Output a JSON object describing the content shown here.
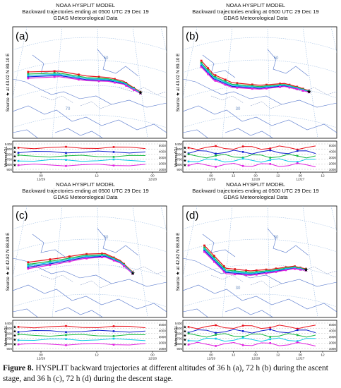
{
  "figure": {
    "panels": [
      {
        "id": "a",
        "label": "(a)",
        "model": "NOAA HYSPLIT MODEL",
        "subtitle": "Backward trajectories ending at 0500 UTC 29 Dec 19",
        "met": "GDAS Meteorological Data",
        "source_text": "Source ★ at 43.02 N 89.10 E",
        "grid_labels": [
          "50",
          "70"
        ],
        "x_ticks": [
          {
            "hour": "00",
            "date": "12/29"
          },
          {
            "hour": "12",
            "date": ""
          },
          {
            "hour": "00",
            "date": "12/28"
          }
        ]
      },
      {
        "id": "b",
        "label": "(b)",
        "model": "NOAA HYSPLIT MODEL",
        "subtitle": "Backward trajectories ending at 0500 UTC 29 Dec 19",
        "met": "GDAS Meteorological Data",
        "source_text": "Source ★ at 43.02 N 89.10 E",
        "grid_labels": [
          "50",
          "30"
        ],
        "x_ticks": [
          {
            "hour": "00",
            "date": "12/29"
          },
          {
            "hour": "12",
            "date": ""
          },
          {
            "hour": "00",
            "date": "12/28"
          },
          {
            "hour": "12",
            "date": ""
          },
          {
            "hour": "00",
            "date": "12/27"
          },
          {
            "hour": "12",
            "date": ""
          }
        ]
      },
      {
        "id": "c",
        "label": "(c)",
        "model": "NOAA HYSPLIT MODEL",
        "subtitle": "Backward trajectories ending at 0500 UTC 29 Dec 19",
        "met": "GDAS Meteorological Data",
        "source_text": "Source ★ at 42.82 N 88.89 E",
        "grid_labels": [
          "50"
        ],
        "x_ticks": [
          {
            "hour": "00",
            "date": "12/29"
          },
          {
            "hour": "12",
            "date": ""
          },
          {
            "hour": "00",
            "date": "12/28"
          }
        ]
      },
      {
        "id": "d",
        "label": "(d)",
        "model": "NOAA HYSPLIT MODEL",
        "subtitle": "Backward trajectories ending at 0500 UTC 29 Dec 19",
        "met": "GDAS Meteorological Data",
        "source_text": "Source ★ at 42.82 N 88.89 E",
        "grid_labels": [
          "50",
          "30"
        ],
        "x_ticks": [
          {
            "hour": "00",
            "date": "12/29"
          },
          {
            "hour": "12",
            "date": ""
          },
          {
            "hour": "00",
            "date": "12/28"
          },
          {
            "hour": "12",
            "date": ""
          },
          {
            "hour": "00",
            "date": "12/27"
          },
          {
            "hour": "12",
            "date": ""
          }
        ]
      }
    ],
    "y_axis_title": "Meters AGL",
    "y_ticks_left": [
      "5400",
      "4500",
      "3600",
      "2700",
      "1800",
      "900"
    ],
    "y_ticks_right": [
      "5000",
      "4000",
      "3000",
      "2000",
      "1000"
    ],
    "altitude_colors": {
      "5000": "#e8101a",
      "4000": "#1020d0",
      "3000": "#18b840",
      "2000": "#10c8e8",
      "1000": "#e020e0",
      "extra": "#e8e020"
    },
    "caption_bold": "Figure 8.",
    "caption_text": "HYSPLIT backward trajectories at different altitudes of 36 h (a), 72 h (b) during the ascent stage, and 36 h (c), 72 h (d) during the descent stage."
  }
}
